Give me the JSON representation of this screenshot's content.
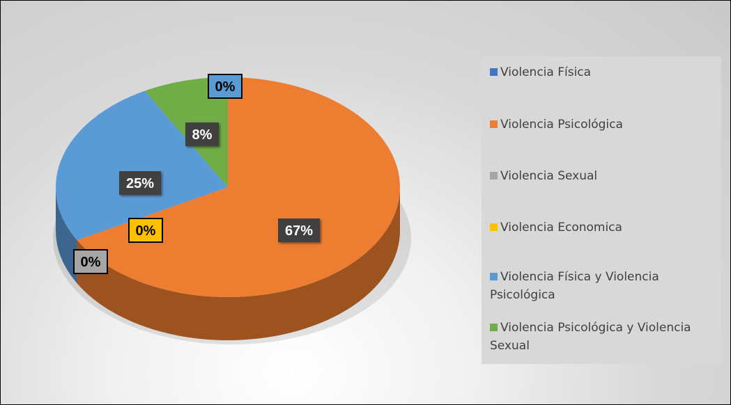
{
  "chart_data": {
    "type": "pie",
    "categories": [
      "Violencia Física",
      "Violencia Psicológica",
      "Violencia Sexual",
      "Violencia Economica",
      "Violencia Física y Violencia Psicológica",
      "Violencia Psicológica y Violencia Sexual"
    ],
    "values": [
      0,
      67,
      0,
      0,
      25,
      8
    ],
    "data_labels": [
      "0%",
      "67%",
      "0%",
      "0%",
      "25%",
      "8%"
    ],
    "colors": [
      "#4472c4",
      "#ed7d31",
      "#a5a5a5",
      "#ffc000",
      "#5b9bd5",
      "#70ad47"
    ],
    "legend_position": "right",
    "style": "3d-pie"
  }
}
